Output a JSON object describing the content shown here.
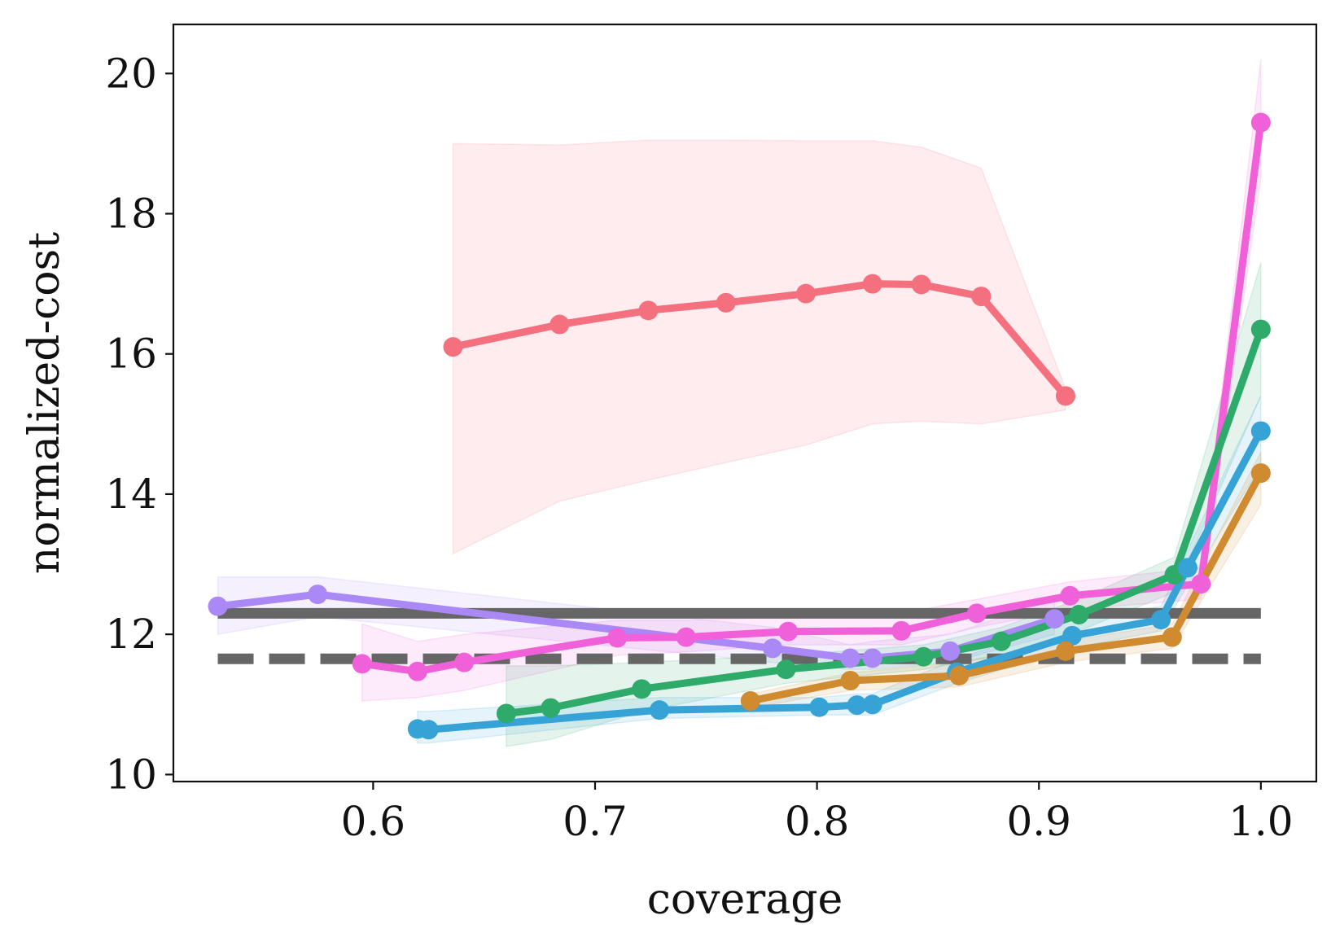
{
  "chart_data": {
    "type": "line",
    "xlabel": "coverage",
    "ylabel": "normalized-cost",
    "xlim": [
      0.51,
      1.025
    ],
    "ylim": [
      9.9,
      20.7
    ],
    "xticks": [
      "0.6",
      "0.7",
      "0.8",
      "0.9",
      "1.0"
    ],
    "yticks": [
      "10",
      "12",
      "14",
      "16",
      "18",
      "20"
    ],
    "grid": false,
    "legend": "none",
    "reference_lines": [
      {
        "style": "solid",
        "y": 12.3,
        "x_range": [
          0.53,
          1.0
        ],
        "color": "#666666"
      },
      {
        "style": "dashed",
        "y": 11.65,
        "x_range": [
          0.53,
          1.0
        ],
        "color": "#666666"
      }
    ],
    "series": [
      {
        "color": "#f5707f",
        "x": [
          0.636,
          0.684,
          0.724,
          0.759,
          0.795,
          0.825,
          0.847,
          0.874,
          0.912
        ],
        "y": [
          16.1,
          16.42,
          16.62,
          16.73,
          16.86,
          17.0,
          16.99,
          16.82,
          15.4
        ],
        "lower": [
          13.15,
          13.9,
          14.2,
          14.45,
          14.7,
          15.0,
          15.04,
          15.0,
          15.2
        ],
        "upper": [
          19.0,
          18.98,
          19.05,
          19.05,
          19.04,
          19.04,
          18.95,
          18.65,
          15.5
        ]
      },
      {
        "color": "#aa88f5",
        "x": [
          0.53,
          0.575,
          0.78,
          0.815,
          0.825,
          0.86,
          0.907
        ],
        "y": [
          12.4,
          12.57,
          11.8,
          11.66,
          11.66,
          11.76,
          12.22
        ],
        "lower": [
          12.0,
          12.25,
          11.6,
          11.5,
          11.5,
          11.6,
          12.0
        ],
        "upper": [
          12.82,
          12.82,
          12.1,
          11.85,
          11.9,
          12.0,
          12.5
        ]
      },
      {
        "color": "#f060d8",
        "x": [
          0.595,
          0.62,
          0.641,
          0.71,
          0.741,
          0.787,
          0.838,
          0.872,
          0.914,
          0.973,
          1.0
        ],
        "y": [
          11.58,
          11.47,
          11.6,
          11.95,
          11.96,
          12.04,
          12.05,
          12.3,
          12.55,
          12.72,
          19.3
        ],
        "lower": [
          11.05,
          11.1,
          11.2,
          11.7,
          11.75,
          11.85,
          11.85,
          12.1,
          12.35,
          12.5,
          18.5
        ],
        "upper": [
          12.15,
          11.9,
          12.0,
          12.2,
          12.2,
          12.25,
          12.3,
          12.5,
          12.75,
          12.95,
          20.2
        ]
      },
      {
        "color": "#2eaa6a",
        "x": [
          0.66,
          0.68,
          0.721,
          0.786,
          0.848,
          0.883,
          0.918,
          0.961,
          1.0
        ],
        "y": [
          10.87,
          10.95,
          11.22,
          11.5,
          11.68,
          11.9,
          12.28,
          12.85,
          16.35
        ],
        "lower": [
          10.4,
          10.5,
          10.9,
          11.3,
          11.5,
          11.7,
          12.05,
          12.6,
          15.4
        ],
        "upper": [
          11.55,
          11.55,
          11.6,
          11.7,
          11.85,
          12.1,
          12.5,
          13.1,
          17.3
        ]
      },
      {
        "color": "#36a2d5",
        "x": [
          0.62,
          0.625,
          0.729,
          0.801,
          0.818,
          0.825,
          0.863,
          0.915,
          0.955,
          0.967,
          1.0
        ],
        "y": [
          10.65,
          10.64,
          10.92,
          10.96,
          10.99,
          11.0,
          11.46,
          11.98,
          12.21,
          12.95,
          14.9
        ],
        "lower": [
          10.45,
          10.45,
          10.8,
          10.85,
          10.85,
          10.85,
          11.3,
          11.8,
          12.05,
          12.7,
          14.4
        ],
        "upper": [
          10.9,
          10.9,
          11.1,
          11.1,
          11.15,
          11.15,
          11.65,
          12.2,
          12.4,
          13.2,
          15.4
        ]
      },
      {
        "color": "#d08a30",
        "x": [
          0.77,
          0.815,
          0.864,
          0.912,
          0.96,
          1.0
        ],
        "y": [
          11.05,
          11.34,
          11.41,
          11.76,
          11.96,
          14.3
        ],
        "lower": [
          10.95,
          11.2,
          11.25,
          11.6,
          11.8,
          13.85
        ],
        "upper": [
          11.15,
          11.45,
          11.6,
          11.9,
          12.15,
          14.6
        ]
      }
    ]
  }
}
